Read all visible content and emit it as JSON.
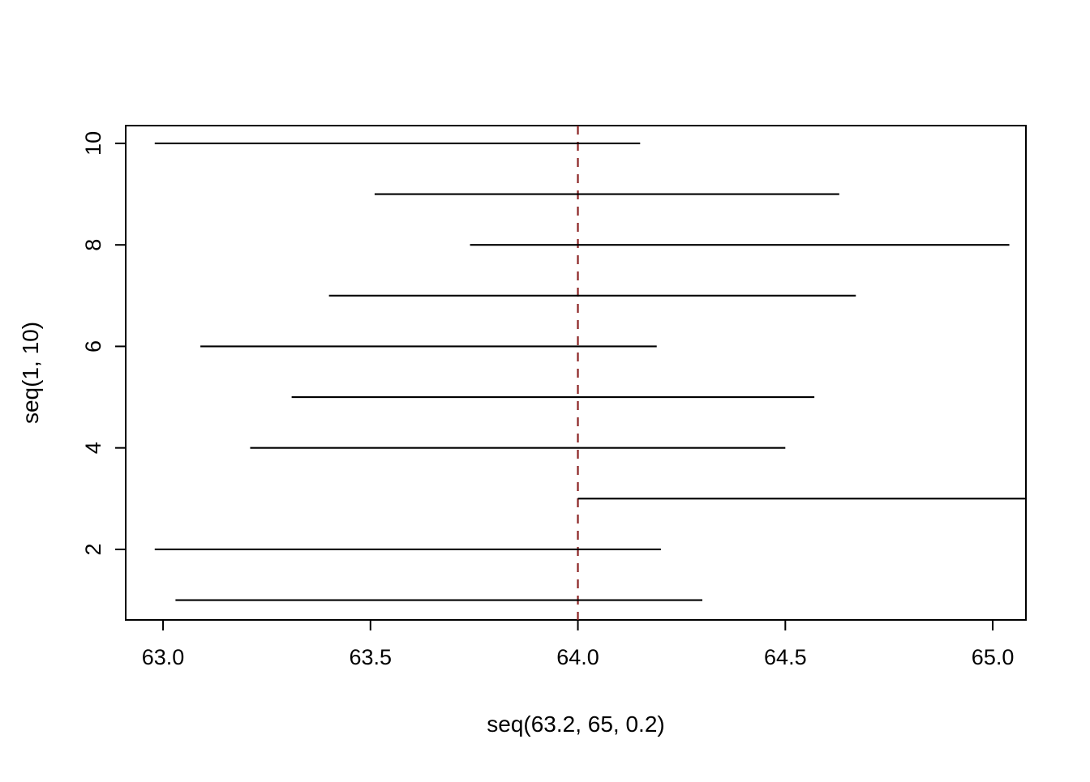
{
  "chart_data": {
    "type": "segment",
    "title": "",
    "xlabel": "seq(63.2, 65, 0.2)",
    "ylabel": "seq(1, 10)",
    "xlim": [
      62.91,
      65.08
    ],
    "ylim": [
      0.61,
      10.35
    ],
    "grid": false,
    "legend": "none",
    "background": "#ffffff",
    "box_color": "#000000",
    "segment_color": "#000000",
    "x_ticks": {
      "values": [
        63.0,
        63.5,
        64.0,
        64.5,
        65.0
      ],
      "labels": [
        "63.0",
        "63.5",
        "64.0",
        "64.5",
        "65.0"
      ]
    },
    "y_ticks": {
      "values": [
        2,
        4,
        6,
        8,
        10
      ],
      "labels": [
        "2",
        "4",
        "6",
        "8",
        "10"
      ]
    },
    "segments": [
      {
        "y": 1,
        "x0": 63.03,
        "x1": 64.3
      },
      {
        "y": 2,
        "x0": 62.98,
        "x1": 64.2
      },
      {
        "y": 3,
        "x0": 64.0,
        "x1": 65.08
      },
      {
        "y": 4,
        "x0": 63.21,
        "x1": 64.5
      },
      {
        "y": 5,
        "x0": 63.31,
        "x1": 64.57
      },
      {
        "y": 6,
        "x0": 63.09,
        "x1": 64.19
      },
      {
        "y": 7,
        "x0": 63.4,
        "x1": 64.67
      },
      {
        "y": 8,
        "x0": 63.74,
        "x1": 65.04
      },
      {
        "y": 9,
        "x0": 63.51,
        "x1": 64.63
      },
      {
        "y": 10,
        "x0": 62.98,
        "x1": 64.15
      }
    ],
    "vline": {
      "x": 64.0,
      "color": "#8B2323",
      "style": "dashed"
    }
  }
}
